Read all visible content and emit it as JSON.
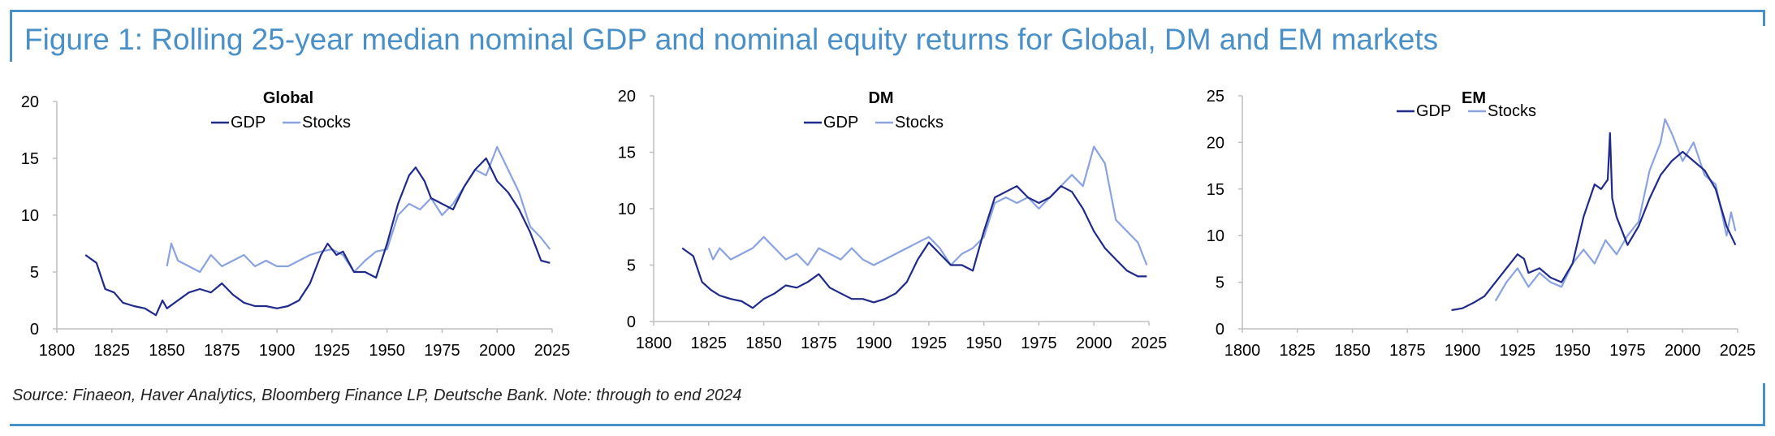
{
  "title": "Figure 1: Rolling 25-year median nominal GDP and nominal equity returns for Global, DM and EM markets",
  "source": "Source: Finaeon, Haver Analytics, Bloomberg Finance LP, Deutsche Bank. Note: through to end 2024",
  "colors": {
    "frame": "#4a90c8",
    "gdp": "#1f2a8a",
    "stocks": "#8aa3e0",
    "axis": "#bfbfbf",
    "text": "#000000"
  },
  "chart_data": [
    {
      "type": "line",
      "title": "Global",
      "legend": [
        "GDP",
        "Stocks"
      ],
      "xlim": [
        1800,
        2025
      ],
      "xticks": [
        "1800",
        "1825",
        "1850",
        "1875",
        "1900",
        "1925",
        "1950",
        "1975",
        "2000",
        "2025"
      ],
      "ylim": [
        0,
        20
      ],
      "yticks": [
        "0",
        "5",
        "10",
        "15",
        "20"
      ],
      "series": [
        {
          "name": "GDP",
          "x": [
            1813,
            1818,
            1822,
            1826,
            1830,
            1835,
            1840,
            1845,
            1848,
            1850,
            1855,
            1860,
            1865,
            1870,
            1875,
            1880,
            1885,
            1890,
            1895,
            1900,
            1905,
            1910,
            1915,
            1920,
            1923,
            1927,
            1930,
            1935,
            1940,
            1945,
            1950,
            1955,
            1960,
            1963,
            1967,
            1970,
            1975,
            1980,
            1985,
            1990,
            1995,
            2000,
            2005,
            2010,
            2015,
            2020,
            2024
          ],
          "values": [
            6.5,
            5.8,
            3.5,
            3.2,
            2.3,
            2.0,
            1.8,
            1.2,
            2.5,
            1.8,
            2.5,
            3.2,
            3.5,
            3.2,
            4.0,
            3.0,
            2.3,
            2.0,
            2.0,
            1.8,
            2.0,
            2.5,
            4.0,
            6.5,
            7.5,
            6.5,
            6.8,
            5.0,
            5.0,
            4.5,
            7.5,
            11.0,
            13.5,
            14.2,
            13.0,
            11.5,
            11.0,
            10.5,
            12.5,
            14.0,
            15.0,
            13.0,
            12.0,
            10.5,
            8.5,
            6.0,
            5.8
          ]
        },
        {
          "name": "Stocks",
          "x": [
            1850,
            1852,
            1855,
            1860,
            1865,
            1870,
            1875,
            1880,
            1885,
            1890,
            1895,
            1900,
            1905,
            1910,
            1915,
            1920,
            1925,
            1930,
            1935,
            1940,
            1945,
            1950,
            1955,
            1960,
            1965,
            1970,
            1975,
            1980,
            1985,
            1990,
            1995,
            2000,
            2005,
            2010,
            2015,
            2020,
            2024
          ],
          "values": [
            5.5,
            7.5,
            6.0,
            5.5,
            5.0,
            6.5,
            5.5,
            6.0,
            6.5,
            5.5,
            6.0,
            5.5,
            5.5,
            6.0,
            6.5,
            6.8,
            7.0,
            6.5,
            5.0,
            6.0,
            6.8,
            7.0,
            10.0,
            11.0,
            10.5,
            11.5,
            10.0,
            11.0,
            12.5,
            14.0,
            13.5,
            16.0,
            14.0,
            12.0,
            9.0,
            8.0,
            7.0
          ]
        }
      ]
    },
    {
      "type": "line",
      "title": "DM",
      "legend": [
        "GDP",
        "Stocks"
      ],
      "xlim": [
        1800,
        2025
      ],
      "xticks": [
        "1800",
        "1825",
        "1850",
        "1875",
        "1900",
        "1925",
        "1950",
        "1975",
        "2000",
        "2025"
      ],
      "ylim": [
        0,
        20
      ],
      "yticks": [
        "0",
        "5",
        "10",
        "15",
        "20"
      ],
      "series": [
        {
          "name": "GDP",
          "x": [
            1813,
            1818,
            1822,
            1826,
            1830,
            1835,
            1840,
            1845,
            1850,
            1855,
            1860,
            1865,
            1870,
            1875,
            1880,
            1885,
            1890,
            1895,
            1900,
            1905,
            1910,
            1915,
            1920,
            1925,
            1930,
            1935,
            1940,
            1945,
            1950,
            1955,
            1960,
            1965,
            1970,
            1975,
            1980,
            1985,
            1990,
            1995,
            2000,
            2005,
            2010,
            2015,
            2020,
            2024
          ],
          "values": [
            6.5,
            5.8,
            3.5,
            2.8,
            2.3,
            2.0,
            1.8,
            1.2,
            2.0,
            2.5,
            3.2,
            3.0,
            3.5,
            4.2,
            3.0,
            2.5,
            2.0,
            2.0,
            1.7,
            2.0,
            2.5,
            3.5,
            5.5,
            7.0,
            6.0,
            5.0,
            5.0,
            4.5,
            8.0,
            11.0,
            11.5,
            12.0,
            11.0,
            10.5,
            11.0,
            12.0,
            11.5,
            10.0,
            8.0,
            6.5,
            5.5,
            4.5,
            4.0,
            4.0
          ]
        },
        {
          "name": "Stocks",
          "x": [
            1825,
            1827,
            1830,
            1835,
            1840,
            1845,
            1850,
            1855,
            1860,
            1865,
            1870,
            1875,
            1880,
            1885,
            1890,
            1895,
            1900,
            1905,
            1910,
            1915,
            1920,
            1925,
            1930,
            1935,
            1940,
            1945,
            1950,
            1955,
            1960,
            1965,
            1970,
            1975,
            1980,
            1985,
            1990,
            1995,
            2000,
            2005,
            2010,
            2015,
            2020,
            2024
          ],
          "values": [
            6.5,
            5.5,
            6.5,
            5.5,
            6.0,
            6.5,
            7.5,
            6.5,
            5.5,
            6.0,
            5.0,
            6.5,
            6.0,
            5.5,
            6.5,
            5.5,
            5.0,
            5.5,
            6.0,
            6.5,
            7.0,
            7.5,
            6.5,
            5.0,
            6.0,
            6.5,
            7.5,
            10.5,
            11.0,
            10.5,
            11.0,
            10.0,
            11.0,
            12.0,
            13.0,
            12.0,
            15.5,
            14.0,
            9.0,
            8.0,
            7.0,
            5.0
          ]
        }
      ]
    },
    {
      "type": "line",
      "title": "EM",
      "legend": [
        "GDP",
        "Stocks"
      ],
      "xlim": [
        1800,
        2025
      ],
      "xticks": [
        "1800",
        "1825",
        "1850",
        "1875",
        "1900",
        "1925",
        "1950",
        "1975",
        "2000",
        "2025"
      ],
      "ylim": [
        0,
        25
      ],
      "yticks": [
        "0",
        "5",
        "10",
        "15",
        "20",
        "25"
      ],
      "series": [
        {
          "name": "GDP",
          "x": [
            1895,
            1900,
            1905,
            1910,
            1915,
            1920,
            1925,
            1928,
            1930,
            1935,
            1940,
            1945,
            1950,
            1955,
            1960,
            1963,
            1966,
            1967,
            1968,
            1970,
            1975,
            1980,
            1985,
            1990,
            1995,
            2000,
            2005,
            2010,
            2015,
            2020,
            2024
          ],
          "values": [
            2.0,
            2.2,
            2.8,
            3.5,
            5.0,
            6.5,
            8.0,
            7.5,
            6.0,
            6.5,
            5.5,
            5.0,
            7.0,
            12.0,
            15.5,
            15.0,
            16.0,
            21.0,
            14.0,
            12.0,
            9.0,
            11.0,
            14.0,
            16.5,
            18.0,
            19.0,
            18.0,
            17.0,
            15.0,
            11.0,
            9.0
          ]
        },
        {
          "name": "Stocks",
          "x": [
            1915,
            1920,
            1925,
            1930,
            1935,
            1940,
            1945,
            1950,
            1955,
            1960,
            1965,
            1970,
            1975,
            1980,
            1985,
            1990,
            1992,
            1995,
            2000,
            2005,
            2010,
            2015,
            2020,
            2022,
            2024
          ],
          "values": [
            3.0,
            5.0,
            6.5,
            4.5,
            6.0,
            5.0,
            4.5,
            7.0,
            8.5,
            7.0,
            9.5,
            8.0,
            10.0,
            11.5,
            17.0,
            20.0,
            22.5,
            21.0,
            18.0,
            20.0,
            16.5,
            15.5,
            10.0,
            12.5,
            10.5
          ]
        }
      ]
    }
  ]
}
